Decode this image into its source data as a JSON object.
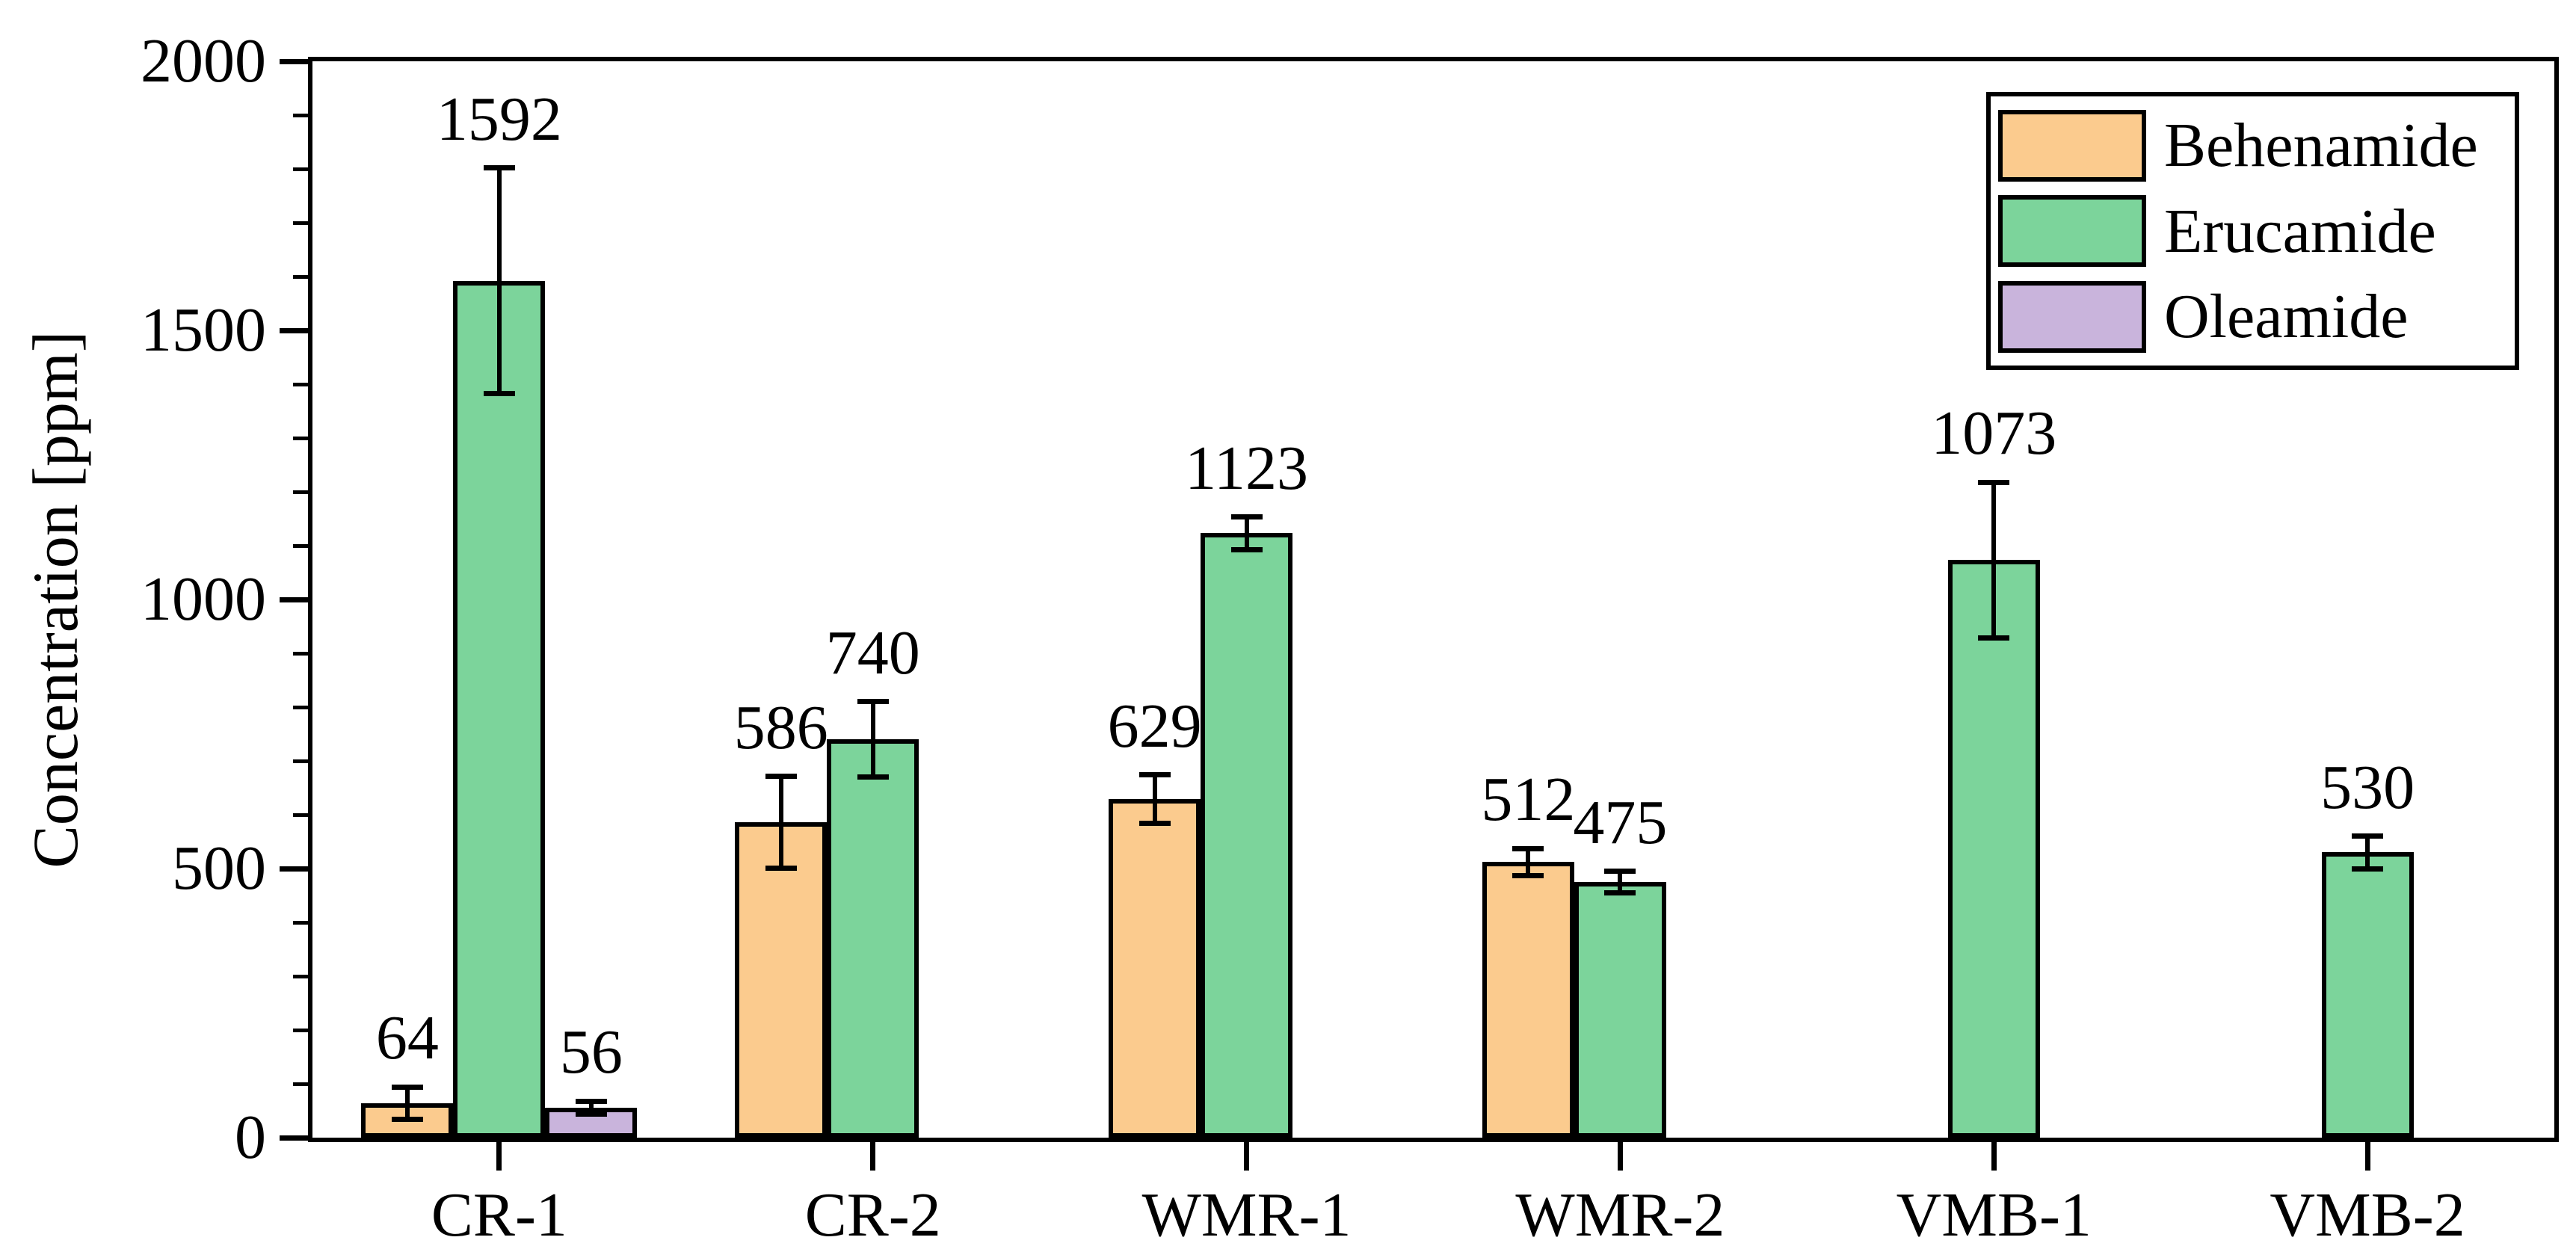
{
  "chart_data": {
    "type": "bar",
    "ylabel": "Concentration [ppm]",
    "xlabel": "",
    "ylim": [
      0,
      2000
    ],
    "ytick_major": 500,
    "ytick_minor": 100,
    "grid": false,
    "legend_position": "top-right",
    "bar_value_labels_shown": true,
    "axis_color": "#000000",
    "background_color": "#FFFFFF",
    "categories": [
      "CR-1",
      "CR-2",
      "WMR-1",
      "WMR-2",
      "VMB-1",
      "VMB-2"
    ],
    "series": [
      {
        "name": "Behenamide",
        "color": "#FBCB8E",
        "values": [
          64,
          586,
          629,
          512,
          null,
          null
        ],
        "errors": [
          30,
          85,
          45,
          25,
          null,
          null
        ]
      },
      {
        "name": "Erucamide",
        "color": "#7CD49B",
        "values": [
          1592,
          740,
          1123,
          475,
          1073,
          530
        ],
        "errors": [
          210,
          70,
          30,
          20,
          145,
          30
        ]
      },
      {
        "name": "Oleamide",
        "color": "#C9B4DC",
        "values": [
          56,
          null,
          null,
          null,
          null,
          null
        ],
        "errors": [
          12,
          null,
          null,
          null,
          null,
          null
        ]
      }
    ]
  }
}
